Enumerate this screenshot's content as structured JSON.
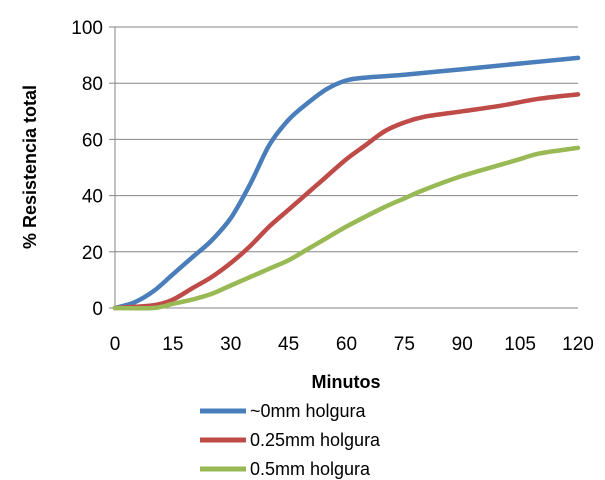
{
  "chart_data": {
    "type": "line",
    "title": "",
    "xlabel": "Minutos",
    "ylabel": "% Resistencia total",
    "xlim": [
      0,
      120
    ],
    "ylim": [
      0,
      100
    ],
    "xticks": [
      0,
      15,
      30,
      45,
      60,
      75,
      90,
      105,
      120
    ],
    "yticks": [
      0,
      20,
      40,
      60,
      80,
      100
    ],
    "grid": "horizontal",
    "legend_position": "bottom",
    "series": [
      {
        "name": "~0mm holgura",
        "color": "#4a7ebb",
        "points": [
          [
            0,
            0
          ],
          [
            5,
            2
          ],
          [
            10,
            6
          ],
          [
            15,
            12
          ],
          [
            20,
            18
          ],
          [
            25,
            24
          ],
          [
            30,
            32
          ],
          [
            35,
            44
          ],
          [
            40,
            58
          ],
          [
            45,
            67
          ],
          [
            50,
            73
          ],
          [
            55,
            78
          ],
          [
            60,
            81
          ],
          [
            65,
            82
          ],
          [
            75,
            83
          ],
          [
            90,
            85
          ],
          [
            105,
            87
          ],
          [
            120,
            89
          ]
        ]
      },
      {
        "name": "0.25mm holgura",
        "color": "#be4b48",
        "points": [
          [
            0,
            0
          ],
          [
            10,
            1
          ],
          [
            15,
            3
          ],
          [
            20,
            7
          ],
          [
            25,
            11
          ],
          [
            30,
            16
          ],
          [
            35,
            22
          ],
          [
            40,
            29
          ],
          [
            45,
            35
          ],
          [
            50,
            41
          ],
          [
            55,
            47
          ],
          [
            60,
            53
          ],
          [
            65,
            58
          ],
          [
            70,
            63
          ],
          [
            75,
            66
          ],
          [
            80,
            68
          ],
          [
            90,
            70
          ],
          [
            100,
            72
          ],
          [
            110,
            74.5
          ],
          [
            120,
            76
          ]
        ]
      },
      {
        "name": "0.5mm holgura",
        "color": "#98b954",
        "points": [
          [
            0,
            0
          ],
          [
            10,
            0
          ],
          [
            15,
            1.5
          ],
          [
            20,
            3
          ],
          [
            25,
            5
          ],
          [
            30,
            8
          ],
          [
            40,
            14
          ],
          [
            45,
            17
          ],
          [
            50,
            21
          ],
          [
            55,
            25
          ],
          [
            60,
            29
          ],
          [
            70,
            36
          ],
          [
            75,
            39
          ],
          [
            80,
            42
          ],
          [
            90,
            47
          ],
          [
            100,
            51
          ],
          [
            105,
            53
          ],
          [
            110,
            55
          ],
          [
            120,
            57
          ]
        ]
      }
    ]
  }
}
